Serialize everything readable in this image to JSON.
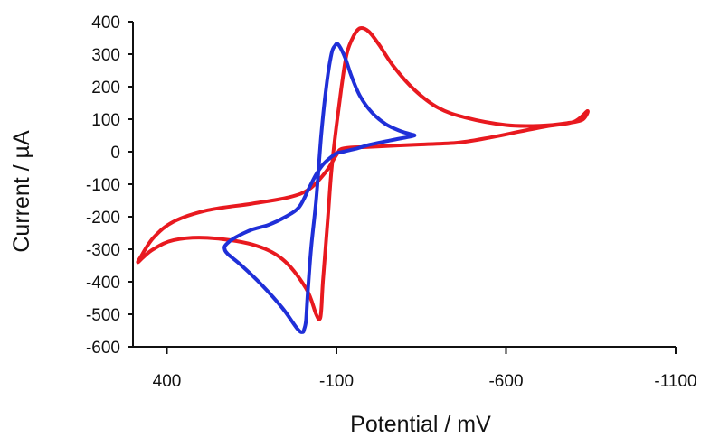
{
  "chart_data": {
    "type": "line",
    "xlabel": "Potential / mV",
    "ylabel": "Current / µA",
    "xlim": [
      500,
      -1100
    ],
    "ylim": [
      -600,
      400
    ],
    "x_axis_reversed": true,
    "grid": false,
    "legend": "none",
    "x_ticks": [
      400,
      -100,
      -600,
      -1100
    ],
    "x_tick_labels": [
      "400",
      "-100",
      "-600",
      "-1100"
    ],
    "y_ticks": [
      400,
      300,
      200,
      100,
      0,
      -100,
      -200,
      -300,
      -400,
      -500,
      -600
    ],
    "y_tick_labels": [
      "400",
      "300",
      "200",
      "100",
      "0",
      "-100",
      "-200",
      "-300",
      "-400",
      "-500",
      "-600"
    ],
    "series": [
      {
        "color": "#e8191f",
        "points": [
          [
            -840,
            125
          ],
          [
            -825,
            98
          ],
          [
            -780,
            88
          ],
          [
            -700,
            80
          ],
          [
            -600,
            82
          ],
          [
            -480,
            105
          ],
          [
            -400,
            135
          ],
          [
            -330,
            190
          ],
          [
            -270,
            260
          ],
          [
            -225,
            330
          ],
          [
            -195,
            370
          ],
          [
            -170,
            380
          ],
          [
            -150,
            355
          ],
          [
            -130,
            300
          ],
          [
            -115,
            200
          ],
          [
            -100,
            80
          ],
          [
            -85,
            -60
          ],
          [
            -75,
            -200
          ],
          [
            -60,
            -400
          ],
          [
            -55,
            -490
          ],
          [
            -50,
            -515
          ],
          [
            -40,
            -500
          ],
          [
            -10,
            -420
          ],
          [
            60,
            -330
          ],
          [
            150,
            -285
          ],
          [
            280,
            -265
          ],
          [
            380,
            -272
          ],
          [
            440,
            -300
          ],
          [
            470,
            -325
          ],
          [
            485,
            -340
          ],
          [
            478,
            -325
          ],
          [
            440,
            -265
          ],
          [
            380,
            -215
          ],
          [
            280,
            -180
          ],
          [
            150,
            -160
          ],
          [
            40,
            -140
          ],
          [
            -20,
            -115
          ],
          [
            -70,
            -60
          ],
          [
            -100,
            -10
          ],
          [
            -120,
            10
          ],
          [
            -200,
            15
          ],
          [
            -340,
            22
          ],
          [
            -460,
            28
          ],
          [
            -560,
            45
          ],
          [
            -640,
            62
          ],
          [
            -720,
            78
          ],
          [
            -800,
            92
          ],
          [
            -840,
            125
          ]
        ]
      },
      {
        "color": "#1f2fd8",
        "points": [
          [
            -330,
            50
          ],
          [
            -315,
            55
          ],
          [
            -285,
            65
          ],
          [
            -245,
            85
          ],
          [
            -205,
            120
          ],
          [
            -170,
            170
          ],
          [
            -145,
            230
          ],
          [
            -125,
            290
          ],
          [
            -105,
            330
          ],
          [
            -95,
            325
          ],
          [
            -85,
            300
          ],
          [
            -70,
            200
          ],
          [
            -55,
            50
          ],
          [
            -40,
            -150
          ],
          [
            -25,
            -300
          ],
          [
            -15,
            -440
          ],
          [
            -10,
            -520
          ],
          [
            -5,
            -545
          ],
          [
            0,
            -555
          ],
          [
            15,
            -545
          ],
          [
            60,
            -480
          ],
          [
            120,
            -410
          ],
          [
            180,
            -350
          ],
          [
            220,
            -315
          ],
          [
            230,
            -298
          ],
          [
            225,
            -285
          ],
          [
            200,
            -265
          ],
          [
            150,
            -240
          ],
          [
            100,
            -225
          ],
          [
            50,
            -200
          ],
          [
            10,
            -170
          ],
          [
            -20,
            -110
          ],
          [
            -40,
            -70
          ],
          [
            -60,
            -40
          ],
          [
            -80,
            -20
          ],
          [
            -100,
            -5
          ],
          [
            -120,
            0
          ],
          [
            -140,
            5
          ],
          [
            -160,
            10
          ],
          [
            -200,
            22
          ],
          [
            -260,
            35
          ],
          [
            -310,
            45
          ],
          [
            -330,
            50
          ]
        ]
      }
    ]
  }
}
